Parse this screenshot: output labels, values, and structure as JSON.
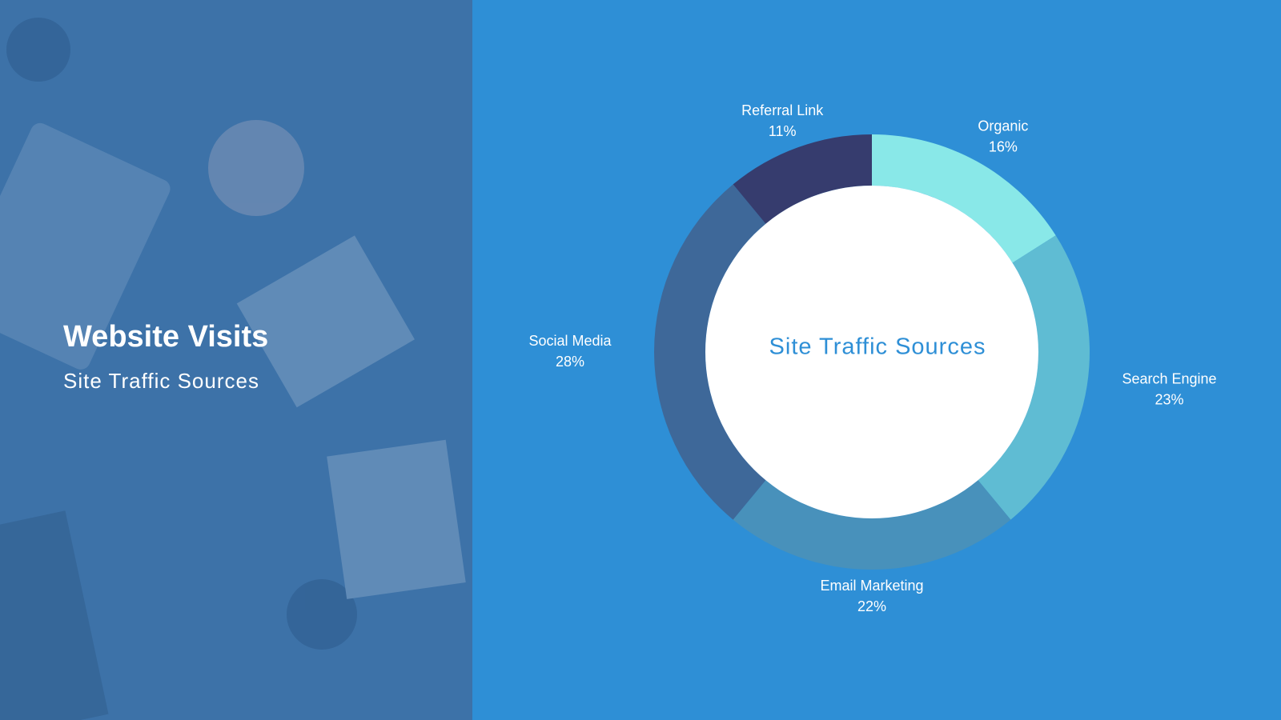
{
  "panel": {
    "title": "Website Visits",
    "subtitle": "Site Traffic Sources"
  },
  "chart_data": {
    "type": "donut",
    "title": "Site Traffic Sources",
    "categories": [
      "Organic",
      "Search Engine",
      "Email Marketing",
      "Social Media",
      "Referral Link"
    ],
    "values": [
      16,
      23,
      22,
      28,
      11
    ],
    "value_labels": [
      "16%",
      "23%",
      "22%",
      "28%",
      "11%"
    ],
    "colors": [
      "#89e8e8",
      "#5fbcd3",
      "#4891bb",
      "#3e6899",
      "#363c6e"
    ]
  }
}
